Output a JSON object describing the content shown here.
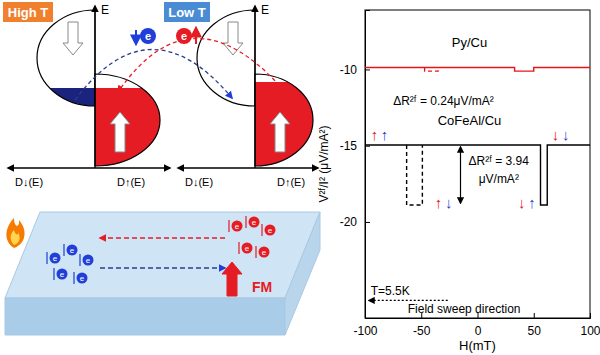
{
  "chart_data": {
    "type": "line",
    "xlabel": "H(mT)",
    "ylabel": "V²ᶠ/I² (μV/mA²)",
    "xlim": [
      -100,
      100
    ],
    "xticks": [
      -100,
      -50,
      0,
      50,
      100
    ],
    "ylim": [
      -26.3,
      -6.1
    ],
    "yticks": [
      -20,
      -15,
      -10
    ],
    "series": [
      {
        "name": "Py/Cu",
        "color": "#e8141b",
        "line_style": "solid",
        "x": [
          -100,
          33,
          33,
          50,
          50,
          100
        ],
        "values": [
          -9.87,
          -9.87,
          -10.11,
          -10.11,
          -9.87,
          -9.87
        ]
      },
      {
        "color": "#e8141b",
        "line_style": "dashed",
        "x": [
          -47,
          -47,
          -35,
          -35
        ],
        "values": [
          -9.87,
          -10.11,
          -10.11,
          -9.87
        ]
      },
      {
        "name": "CoFeAl/Cu",
        "color": "#000000",
        "line_style": "solid",
        "x": [
          -100,
          56,
          56,
          62,
          62,
          100
        ],
        "values": [
          -14.95,
          -14.95,
          -18.89,
          -18.89,
          -14.95,
          -14.95
        ]
      },
      {
        "color": "#000000",
        "line_style": "dashed",
        "x": [
          -63,
          -63,
          -49,
          -49
        ],
        "values": [
          -14.95,
          -18.89,
          -18.89,
          -14.95
        ]
      }
    ],
    "annotations": [
      {
        "text": "ΔR²ᶠ = 0.24μV/mA²",
        "x": -75,
        "y": -12.35
      },
      {
        "text": "ΔR²ᶠ = 3.94",
        "x": -8,
        "y": -16.25
      },
      {
        "text": "μV/mA²",
        "x": 1,
        "y": -17.45
      },
      {
        "text": "T=5.5K",
        "x": -95,
        "y": -24.8
      },
      {
        "text": "Field sweep direction",
        "x": -62,
        "y": -26.0
      },
      {
        "text": "↑",
        "x": -95,
        "y": -14.6,
        "color": "#e8141b"
      },
      {
        "text": "↑",
        "x": -86,
        "y": -14.6,
        "color": "#1f3fd8"
      },
      {
        "text": "↓",
        "x": 66,
        "y": -14.6,
        "color": "#e8141b"
      },
      {
        "text": "↓",
        "x": 75,
        "y": -14.6,
        "color": "#1f3fd8"
      },
      {
        "text": "↑",
        "x": -38,
        "y": -19.1,
        "color": "#e8141b"
      },
      {
        "text": "↓",
        "x": -29,
        "y": -19.1,
        "color": "#1f3fd8"
      },
      {
        "text": "↓",
        "x": 36,
        "y": -19.1,
        "color": "#e8141b"
      },
      {
        "text": "↑",
        "x": 45,
        "y": -19.1,
        "color": "#1f3fd8"
      }
    ]
  },
  "diagram": {
    "panels": [
      {
        "label": "High T",
        "color": "#f07f2e"
      },
      {
        "label": "Low T",
        "color": "#4a8cd4"
      }
    ],
    "energy_label": "E",
    "dos_down_label": "D↓(E)",
    "dos_up_label": "D↑(E)",
    "electron_label": "e",
    "substrate_label": "FM"
  }
}
